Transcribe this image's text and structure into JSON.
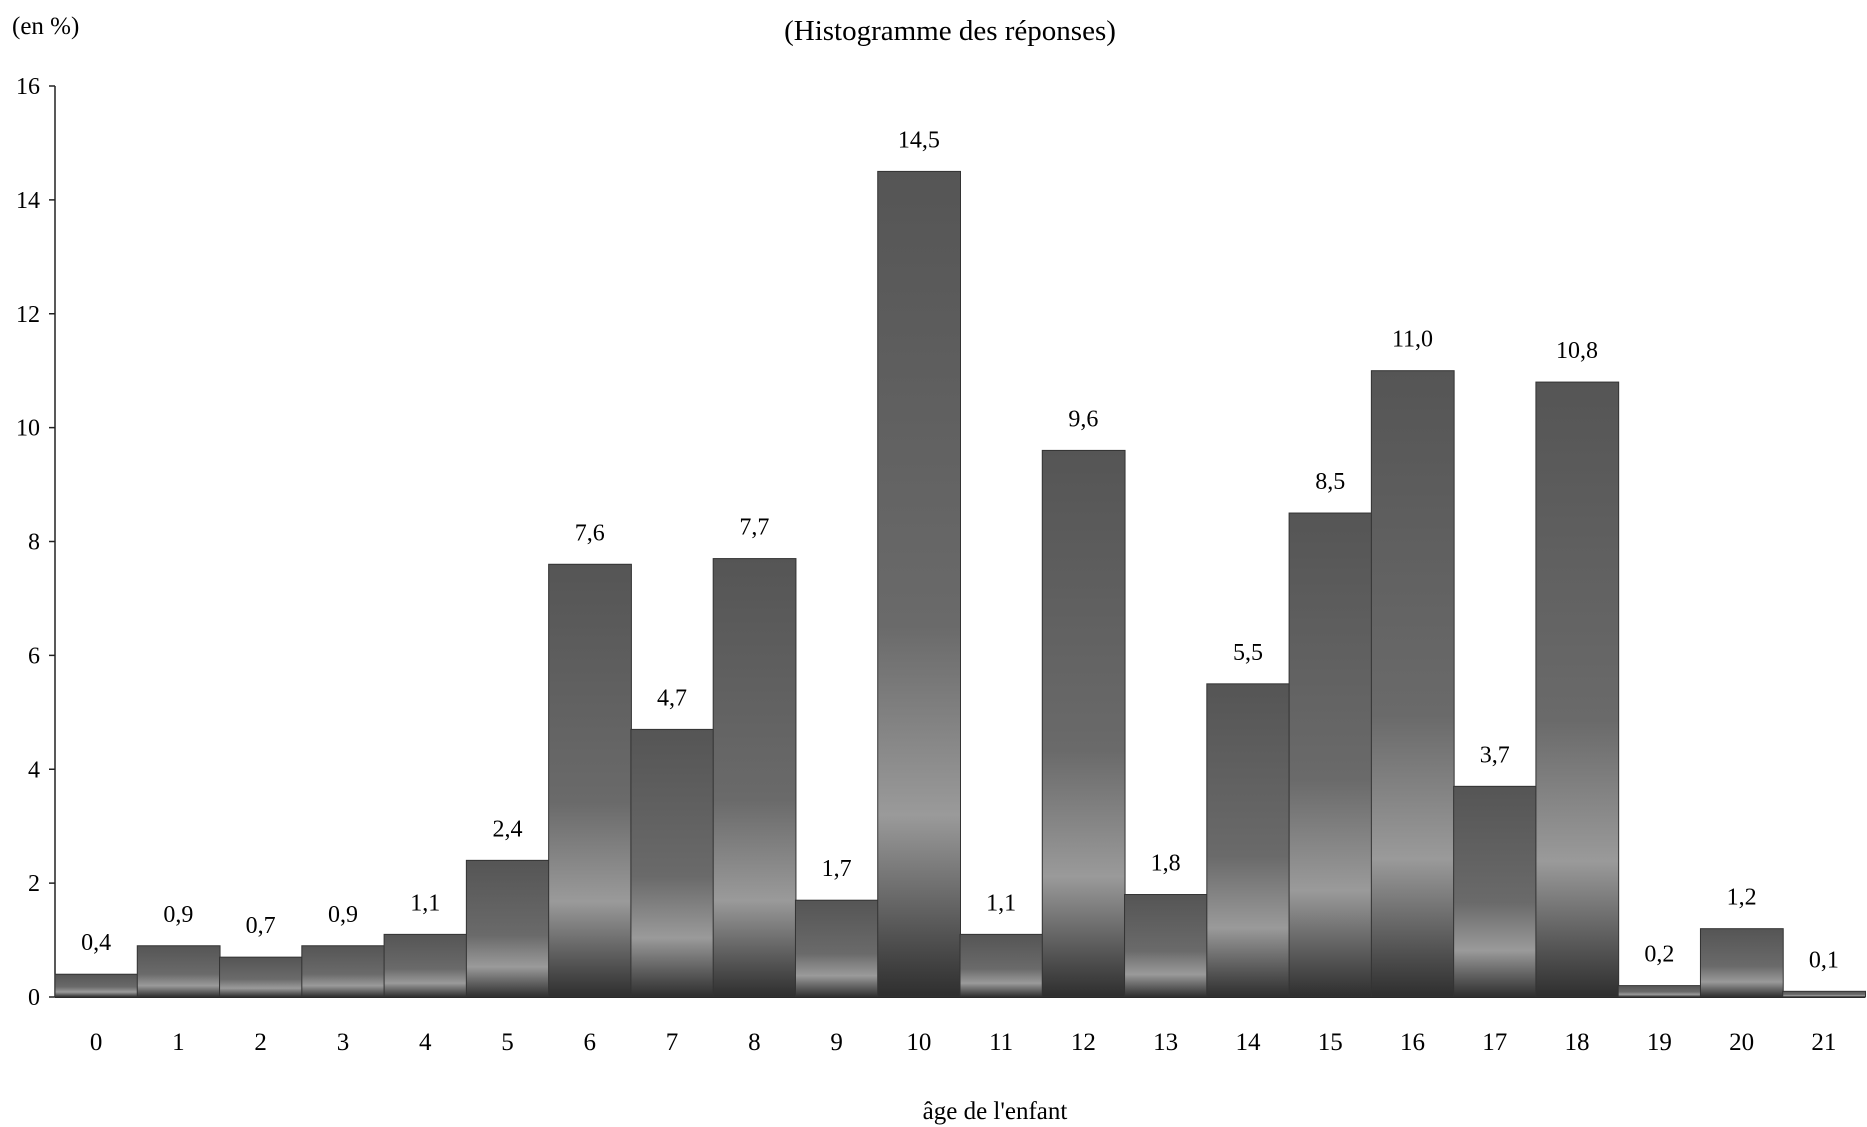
{
  "chart_data": {
    "type": "bar",
    "title": "",
    "subtitle": "(Histogramme des réponses)",
    "unit_label": "(en %)",
    "xlabel": "âge de l'enfant",
    "ylabel": "",
    "ylim": [
      0,
      16
    ],
    "yticks": [
      0,
      2,
      4,
      6,
      8,
      10,
      12,
      14,
      16
    ],
    "categories": [
      "0",
      "1",
      "2",
      "3",
      "4",
      "5",
      "6",
      "7",
      "8",
      "9",
      "10",
      "11",
      "12",
      "13",
      "14",
      "15",
      "16",
      "17",
      "18",
      "19",
      "20",
      "21"
    ],
    "values": [
      0.4,
      0.9,
      0.7,
      0.9,
      1.1,
      2.4,
      7.6,
      4.7,
      7.7,
      1.7,
      14.5,
      1.1,
      9.6,
      1.8,
      5.5,
      8.5,
      11.0,
      3.7,
      10.8,
      0.2,
      1.2,
      0.1
    ],
    "value_labels": [
      "0,4",
      "0,9",
      "0,7",
      "0,9",
      "1,1",
      "2,4",
      "7,6",
      "4,7",
      "7,7",
      "1,7",
      "14,5",
      "1,1",
      "9,6",
      "1,8",
      "5,5",
      "8,5",
      "11,0",
      "3,7",
      "10,8",
      "0,2",
      "1,2",
      "0,1"
    ],
    "grid": false,
    "legend": "none",
    "bar_color": "#4a4a4a"
  }
}
